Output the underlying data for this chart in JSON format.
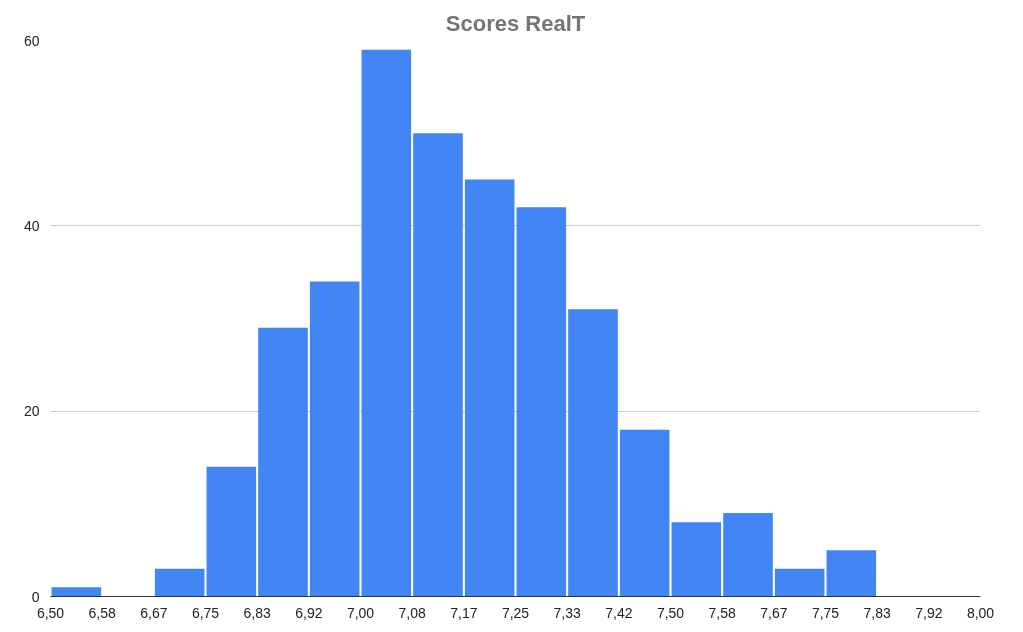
{
  "chart_data": {
    "type": "histogram",
    "title": "Scores RealT",
    "color": "#4285f4",
    "bins": [
      6.5,
      6.5833,
      6.6667,
      6.75,
      6.8333,
      6.9167,
      7.0,
      7.0833,
      7.1667,
      7.25,
      7.3333,
      7.4167,
      7.5,
      7.5833,
      7.6667,
      7.75,
      7.8333,
      7.9167,
      8.0
    ],
    "values": [
      1,
      0,
      3,
      14,
      29,
      34,
      59,
      50,
      45,
      42,
      31,
      18,
      8,
      9,
      3,
      5,
      0,
      0
    ],
    "xlim": [
      6.5,
      8.0
    ],
    "xticks": [
      {
        "value": 6.5,
        "label": "6,50"
      },
      {
        "value": 6.5833,
        "label": "6,58"
      },
      {
        "value": 6.6667,
        "label": "6,67"
      },
      {
        "value": 6.75,
        "label": "6,75"
      },
      {
        "value": 6.8333,
        "label": "6,83"
      },
      {
        "value": 6.9167,
        "label": "6,92"
      },
      {
        "value": 7.0,
        "label": "7,00"
      },
      {
        "value": 7.0833,
        "label": "7,08"
      },
      {
        "value": 7.1667,
        "label": "7,17"
      },
      {
        "value": 7.25,
        "label": "7,25"
      },
      {
        "value": 7.3333,
        "label": "7,33"
      },
      {
        "value": 7.4167,
        "label": "7,42"
      },
      {
        "value": 7.5,
        "label": "7,50"
      },
      {
        "value": 7.5833,
        "label": "7,58"
      },
      {
        "value": 7.6667,
        "label": "7,67"
      },
      {
        "value": 7.75,
        "label": "7,75"
      },
      {
        "value": 7.8333,
        "label": "7,83"
      },
      {
        "value": 7.9167,
        "label": "7,92"
      },
      {
        "value": 8.0,
        "label": "8,00"
      }
    ],
    "ylim": [
      0,
      60
    ],
    "yticks": [
      0,
      20,
      40,
      60
    ],
    "grid": "y"
  }
}
